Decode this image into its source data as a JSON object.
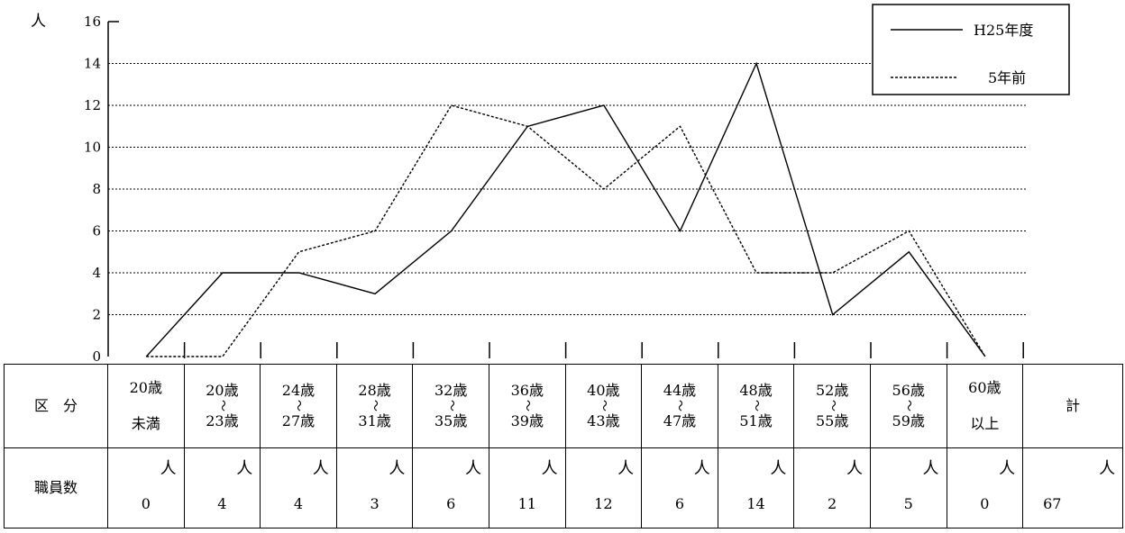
{
  "chart_data": {
    "type": "line",
    "y_unit": "人",
    "ylim": [
      0,
      16
    ],
    "yticks": [
      0,
      2,
      4,
      6,
      8,
      10,
      12,
      14,
      16
    ],
    "grid": "horizontal dotted",
    "legend_position": "top-right",
    "categories": [
      "20歳未満",
      "20歳〜23歳",
      "24歳〜27歳",
      "28歳〜31歳",
      "32歳〜35歳",
      "36歳〜39歳",
      "40歳〜43歳",
      "44歳〜47歳",
      "48歳〜51歳",
      "52歳〜55歳",
      "56歳〜59歳",
      "60歳以上"
    ],
    "series": [
      {
        "name": "H25年度",
        "style": "solid",
        "values": [
          0,
          4,
          4,
          3,
          6,
          11,
          12,
          6,
          14,
          2,
          5,
          0
        ]
      },
      {
        "name": "5年前",
        "style": "dotted",
        "values": [
          0,
          0,
          5,
          6,
          12,
          11,
          8,
          11,
          4,
          4,
          6,
          0
        ]
      }
    ]
  },
  "table": {
    "row1_header": "区　分",
    "row2_header": "職員数",
    "unit": "人",
    "total_label": "計",
    "total_value": "67",
    "tilde": "〜",
    "columns": [
      {
        "top": "20歳",
        "bottom": "未満",
        "range": false,
        "value": "0"
      },
      {
        "top": "20歳",
        "bottom": "23歳",
        "range": true,
        "value": "4"
      },
      {
        "top": "24歳",
        "bottom": "27歳",
        "range": true,
        "value": "4"
      },
      {
        "top": "28歳",
        "bottom": "31歳",
        "range": true,
        "value": "3"
      },
      {
        "top": "32歳",
        "bottom": "35歳",
        "range": true,
        "value": "6"
      },
      {
        "top": "36歳",
        "bottom": "39歳",
        "range": true,
        "value": "11"
      },
      {
        "top": "40歳",
        "bottom": "43歳",
        "range": true,
        "value": "12"
      },
      {
        "top": "44歳",
        "bottom": "47歳",
        "range": true,
        "value": "6"
      },
      {
        "top": "48歳",
        "bottom": "51歳",
        "range": true,
        "value": "14"
      },
      {
        "top": "52歳",
        "bottom": "55歳",
        "range": true,
        "value": "2"
      },
      {
        "top": "56歳",
        "bottom": "59歳",
        "range": true,
        "value": "5"
      },
      {
        "top": "60歳",
        "bottom": "以上",
        "range": false,
        "value": "0"
      }
    ]
  }
}
